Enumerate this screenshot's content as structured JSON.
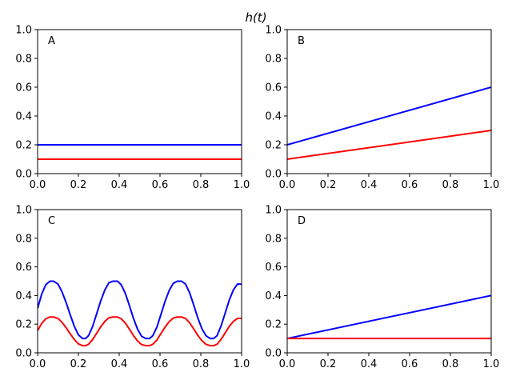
{
  "figure": {
    "title": "h(t)",
    "title_axis": "A"
  },
  "chart_data": [
    {
      "type": "line",
      "panel_label": "A",
      "xlim": [
        0,
        1
      ],
      "ylim": [
        0,
        1
      ],
      "xticks": [
        "0.0",
        "0.2",
        "0.4",
        "0.6",
        "0.8",
        "1.0"
      ],
      "yticks": [
        "0.0",
        "0.2",
        "0.4",
        "0.6",
        "0.8",
        "1.0"
      ],
      "grid": false,
      "series": [
        {
          "color": "#0000ff",
          "x": [
            0,
            1
          ],
          "y": [
            0.2,
            0.2
          ]
        },
        {
          "color": "#ff0000",
          "x": [
            0,
            1
          ],
          "y": [
            0.1,
            0.1
          ]
        }
      ]
    },
    {
      "type": "line",
      "panel_label": "B",
      "xlim": [
        0,
        1
      ],
      "ylim": [
        0,
        1
      ],
      "xticks": [
        "0.0",
        "0.2",
        "0.4",
        "0.6",
        "0.8",
        "1.0"
      ],
      "yticks": [
        "0.0",
        "0.2",
        "0.4",
        "0.6",
        "0.8",
        "1.0"
      ],
      "grid": false,
      "series": [
        {
          "color": "#0000ff",
          "x": [
            0,
            1
          ],
          "y": [
            0.2,
            0.6
          ]
        },
        {
          "color": "#ff0000",
          "x": [
            0,
            1
          ],
          "y": [
            0.1,
            0.3
          ]
        }
      ]
    },
    {
      "type": "line",
      "panel_label": "C",
      "xlim": [
        0,
        1
      ],
      "ylim": [
        0,
        1
      ],
      "xticks": [
        "0.0",
        "0.2",
        "0.4",
        "0.6",
        "0.8",
        "1.0"
      ],
      "yticks": [
        "0.0",
        "0.2",
        "0.4",
        "0.6",
        "0.8",
        "1.0"
      ],
      "grid": false,
      "series": [
        {
          "color": "#0000ff",
          "x": [
            0,
            0.02,
            0.04,
            0.06,
            0.078,
            0.1,
            0.12,
            0.14,
            0.16,
            0.18,
            0.2,
            0.22,
            0.235,
            0.25,
            0.27,
            0.29,
            0.31,
            0.33,
            0.35,
            0.37,
            0.392,
            0.41,
            0.43,
            0.45,
            0.47,
            0.49,
            0.51,
            0.53,
            0.549,
            0.565,
            0.585,
            0.605,
            0.625,
            0.645,
            0.665,
            0.685,
            0.706,
            0.725,
            0.745,
            0.765,
            0.785,
            0.805,
            0.825,
            0.845,
            0.863,
            0.88,
            0.9,
            0.92,
            0.94,
            0.96,
            0.98,
            1.0
          ],
          "y": [
            0.31,
            0.41,
            0.475,
            0.5,
            0.5,
            0.48,
            0.425,
            0.35,
            0.265,
            0.185,
            0.125,
            0.1,
            0.1,
            0.12,
            0.185,
            0.275,
            0.365,
            0.44,
            0.49,
            0.5,
            0.5,
            0.475,
            0.415,
            0.33,
            0.24,
            0.165,
            0.115,
            0.1,
            0.1,
            0.12,
            0.18,
            0.27,
            0.36,
            0.435,
            0.485,
            0.5,
            0.5,
            0.48,
            0.42,
            0.335,
            0.245,
            0.17,
            0.12,
            0.1,
            0.1,
            0.12,
            0.19,
            0.28,
            0.37,
            0.44,
            0.48,
            0.48
          ]
        },
        {
          "color": "#ff0000",
          "x": [
            0,
            0.02,
            0.04,
            0.06,
            0.078,
            0.1,
            0.12,
            0.14,
            0.16,
            0.18,
            0.2,
            0.22,
            0.235,
            0.25,
            0.27,
            0.29,
            0.31,
            0.33,
            0.35,
            0.37,
            0.392,
            0.41,
            0.43,
            0.45,
            0.47,
            0.49,
            0.51,
            0.53,
            0.549,
            0.565,
            0.585,
            0.605,
            0.625,
            0.645,
            0.665,
            0.685,
            0.706,
            0.725,
            0.745,
            0.765,
            0.785,
            0.805,
            0.825,
            0.845,
            0.863,
            0.88,
            0.9,
            0.92,
            0.94,
            0.96,
            0.98,
            1.0
          ],
          "y": [
            0.155,
            0.205,
            0.2375,
            0.25,
            0.25,
            0.24,
            0.2125,
            0.175,
            0.1325,
            0.0925,
            0.0625,
            0.05,
            0.05,
            0.06,
            0.0925,
            0.1375,
            0.1825,
            0.22,
            0.245,
            0.25,
            0.25,
            0.2375,
            0.2075,
            0.165,
            0.12,
            0.0825,
            0.0575,
            0.05,
            0.05,
            0.06,
            0.09,
            0.135,
            0.18,
            0.2175,
            0.2425,
            0.25,
            0.25,
            0.24,
            0.21,
            0.1675,
            0.1225,
            0.085,
            0.06,
            0.05,
            0.05,
            0.06,
            0.095,
            0.14,
            0.185,
            0.22,
            0.24,
            0.24
          ]
        }
      ]
    },
    {
      "type": "line",
      "panel_label": "D",
      "xlim": [
        0,
        1
      ],
      "ylim": [
        0,
        1
      ],
      "xticks": [
        "0.0",
        "0.2",
        "0.4",
        "0.6",
        "0.8",
        "1.0"
      ],
      "yticks": [
        "0.0",
        "0.2",
        "0.4",
        "0.6",
        "0.8",
        "1.0"
      ],
      "grid": false,
      "series": [
        {
          "color": "#0000ff",
          "x": [
            0,
            1
          ],
          "y": [
            0.1,
            0.4
          ]
        },
        {
          "color": "#ff0000",
          "x": [
            0,
            1
          ],
          "y": [
            0.1,
            0.1
          ]
        }
      ]
    }
  ]
}
